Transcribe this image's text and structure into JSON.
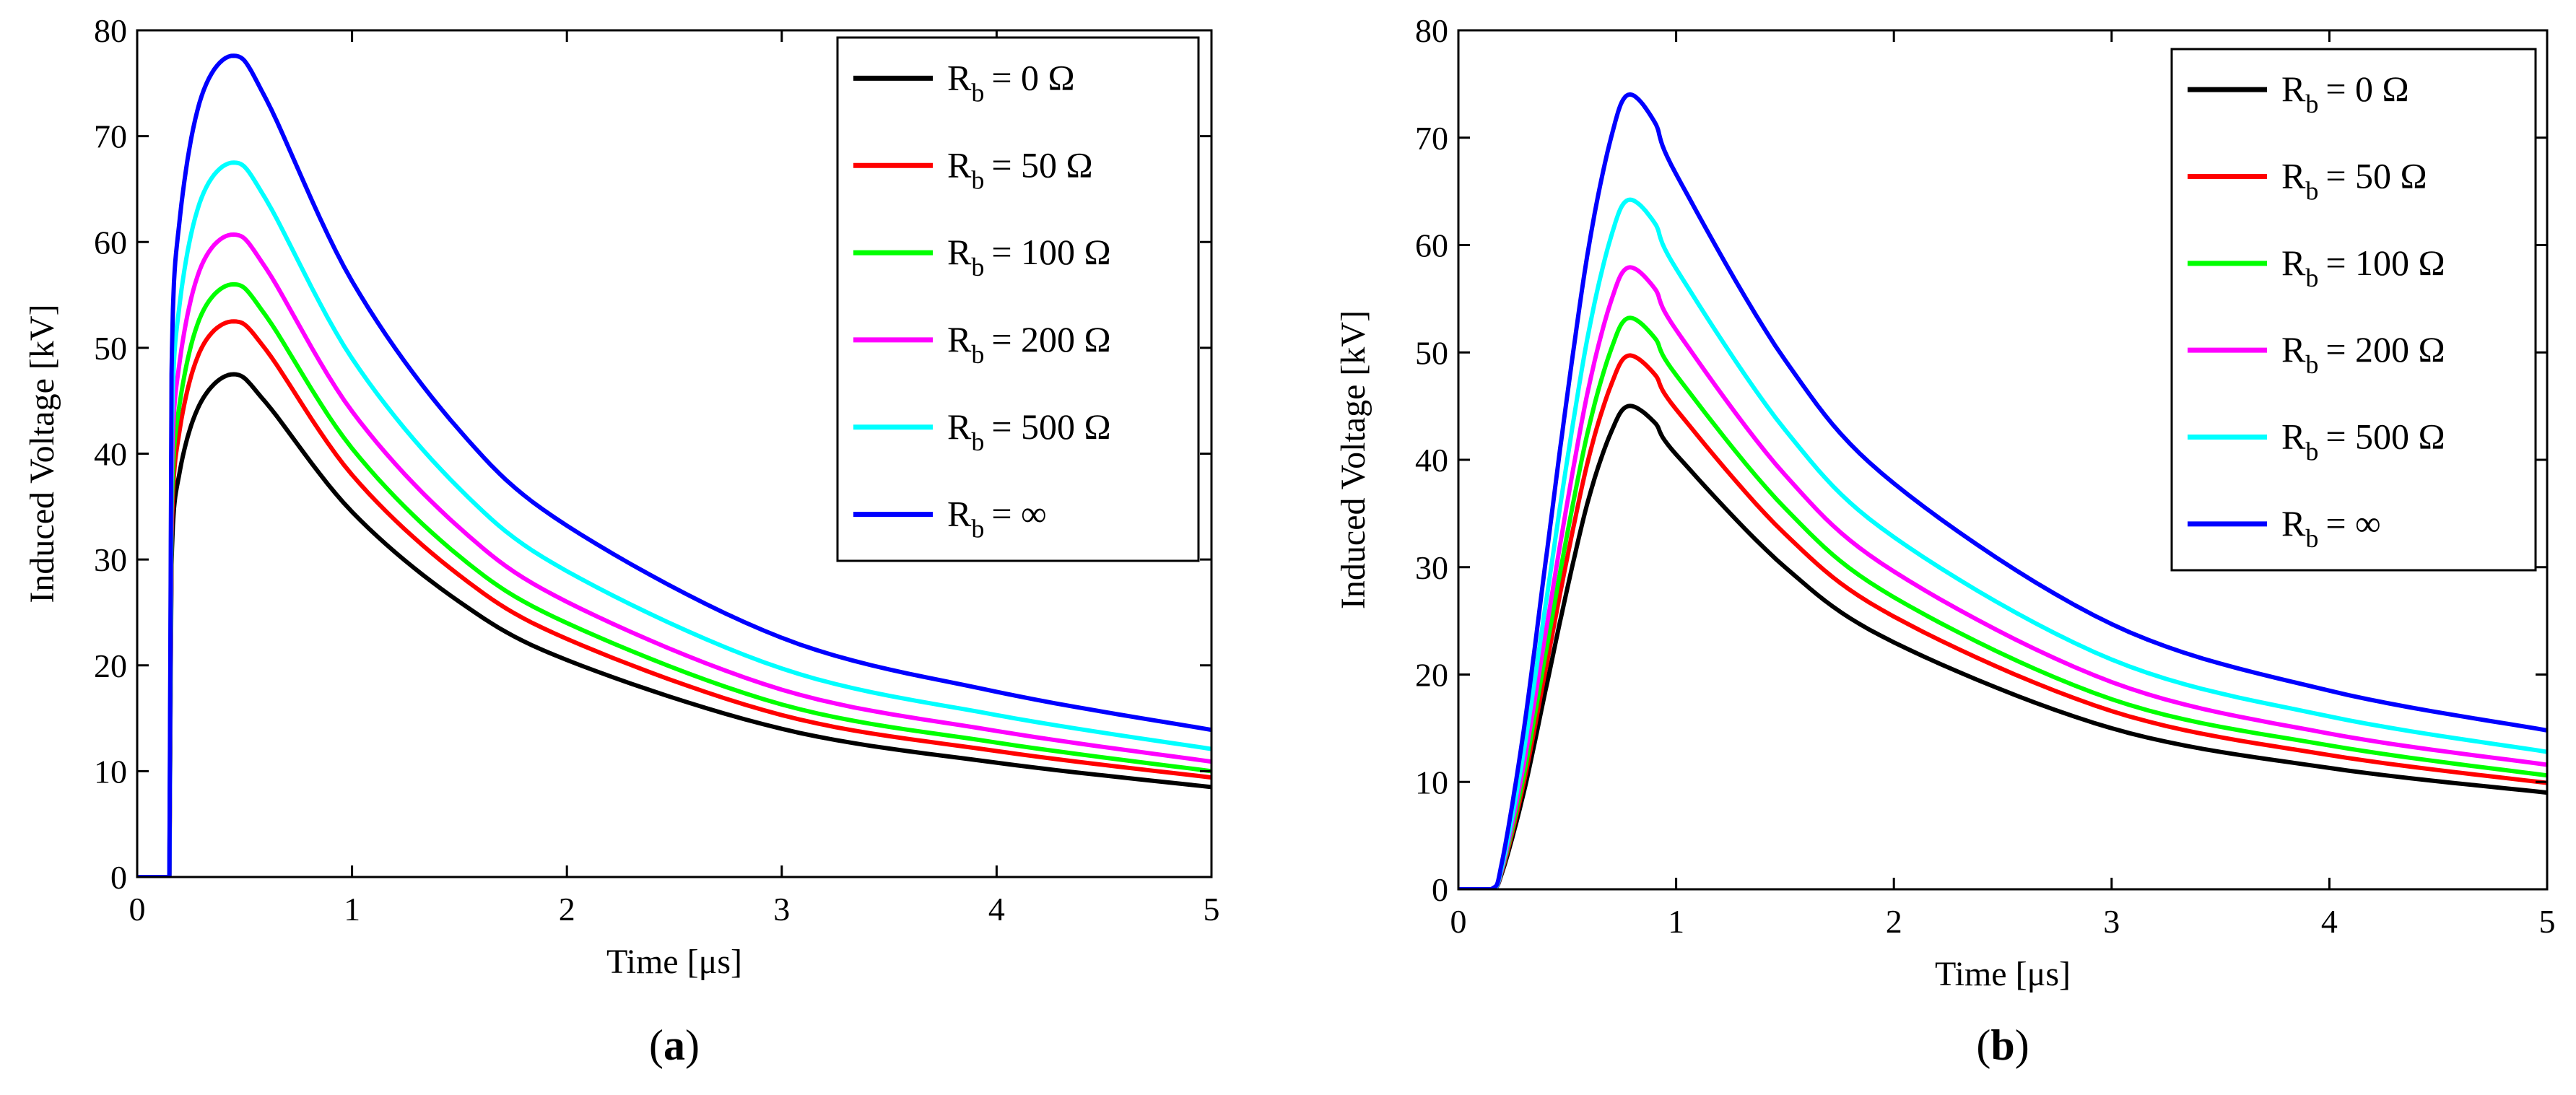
{
  "chart_data": [
    {
      "type": "line",
      "panel_label": "a",
      "xlabel": "Time [μs]",
      "ylabel": "Induced Voltage [kV]",
      "xlim": [
        0,
        5
      ],
      "ylim": [
        0,
        80
      ],
      "xticks": [
        0,
        1,
        2,
        3,
        4,
        5
      ],
      "yticks": [
        0,
        10,
        20,
        30,
        40,
        50,
        60,
        70,
        80
      ],
      "legend_position": "top-right",
      "onset": 0.15,
      "series": [
        {
          "name": "R",
          "sub": "b",
          "value_text": "= 0 Ω",
          "color": "#000000",
          "x": [
            0,
            0.15,
            0.16,
            0.2,
            0.3,
            0.45,
            0.6,
            1.0,
            1.5,
            2.0,
            3.0,
            4.0,
            5.0
          ],
          "y": [
            0,
            0,
            29.5,
            38.5,
            45.0,
            47.5,
            44.8,
            34.5,
            26.0,
            20.5,
            14.0,
            10.8,
            8.5
          ]
        },
        {
          "name": "R",
          "sub": "b",
          "value_text": "= 50 Ω",
          "color": "#ff0000",
          "x": [
            0,
            0.15,
            0.16,
            0.2,
            0.3,
            0.45,
            0.6,
            1.0,
            1.5,
            2.0,
            3.0,
            4.0,
            5.0
          ],
          "y": [
            0,
            0,
            32.0,
            42.5,
            50.0,
            52.5,
            49.8,
            38.0,
            28.5,
            22.5,
            15.3,
            11.9,
            9.4
          ]
        },
        {
          "name": "R",
          "sub": "b",
          "value_text": "= 100 Ω",
          "color": "#00ff00",
          "x": [
            0,
            0.15,
            0.16,
            0.2,
            0.3,
            0.45,
            0.6,
            1.0,
            1.5,
            2.0,
            3.0,
            4.0,
            5.0
          ],
          "y": [
            0,
            0,
            34.0,
            45.0,
            53.2,
            56.0,
            53.0,
            40.5,
            30.3,
            24.0,
            16.3,
            12.7,
            10.0
          ]
        },
        {
          "name": "R",
          "sub": "b",
          "value_text": "= 200 Ω",
          "color": "#ff00ff",
          "x": [
            0,
            0.15,
            0.16,
            0.2,
            0.3,
            0.45,
            0.6,
            1.0,
            1.5,
            2.0,
            3.0,
            4.0,
            5.0
          ],
          "y": [
            0,
            0,
            37.0,
            49.0,
            57.8,
            60.7,
            57.5,
            44.0,
            33.0,
            26.0,
            17.7,
            13.8,
            10.9
          ]
        },
        {
          "name": "R",
          "sub": "b",
          "value_text": "= 500 Ω",
          "color": "#00ffff",
          "x": [
            0,
            0.15,
            0.16,
            0.2,
            0.3,
            0.45,
            0.6,
            1.0,
            1.5,
            2.0,
            3.0,
            4.0,
            5.0
          ],
          "y": [
            0,
            0,
            41.0,
            54.5,
            64.2,
            67.5,
            64.0,
            49.0,
            36.7,
            28.9,
            19.7,
            15.3,
            12.1
          ]
        },
        {
          "name": "R",
          "sub": "b",
          "value_text": "= ∞",
          "color": "#0000ff",
          "x": [
            0,
            0.15,
            0.16,
            0.2,
            0.3,
            0.45,
            0.6,
            1.0,
            1.5,
            2.0,
            3.0,
            4.0,
            5.0
          ],
          "y": [
            0,
            0,
            47.5,
            62.5,
            73.8,
            77.6,
            73.5,
            56.3,
            42.2,
            33.2,
            22.6,
            17.5,
            13.9
          ]
        }
      ]
    },
    {
      "type": "line",
      "panel_label": "b",
      "xlabel": "Time [μs]",
      "ylabel": "Induced Voltage [kV]",
      "xlim": [
        0,
        5
      ],
      "ylim": [
        0,
        80
      ],
      "xticks": [
        0,
        1,
        2,
        3,
        4,
        5
      ],
      "yticks": [
        0,
        10,
        20,
        30,
        40,
        50,
        60,
        70,
        80
      ],
      "legend_position": "top-right",
      "onset": 0.15,
      "series": [
        {
          "name": "R",
          "sub": "b",
          "value_text": "= 0 Ω",
          "color": "#000000",
          "x": [
            0,
            0.15,
            0.2,
            0.3,
            0.4,
            0.5,
            0.6,
            0.7,
            0.78,
            0.9,
            1.0,
            1.5,
            2.0,
            3.0,
            4.0,
            5.0
          ],
          "y": [
            0,
            0,
            1.5,
            9.0,
            18.5,
            28.0,
            36.5,
            42.5,
            45.0,
            43.5,
            40.5,
            30.0,
            23.0,
            15.0,
            11.3,
            9.0
          ]
        },
        {
          "name": "R",
          "sub": "b",
          "value_text": "= 50 Ω",
          "color": "#ff0000",
          "x": [
            0,
            0.15,
            0.2,
            0.3,
            0.4,
            0.5,
            0.6,
            0.7,
            0.78,
            0.9,
            1.0,
            1.5,
            2.0,
            3.0,
            4.0,
            5.0
          ],
          "y": [
            0,
            0,
            1.7,
            9.9,
            20.4,
            30.9,
            40.3,
            46.9,
            49.7,
            48.0,
            44.7,
            33.1,
            25.4,
            16.6,
            12.5,
            9.9
          ]
        },
        {
          "name": "R",
          "sub": "b",
          "value_text": "= 100 Ω",
          "color": "#00ff00",
          "x": [
            0,
            0.15,
            0.2,
            0.3,
            0.4,
            0.5,
            0.6,
            0.7,
            0.78,
            0.9,
            1.0,
            1.5,
            2.0,
            3.0,
            4.0,
            5.0
          ],
          "y": [
            0,
            0,
            1.8,
            10.6,
            21.9,
            33.1,
            43.1,
            50.2,
            53.2,
            51.4,
            47.9,
            35.5,
            27.2,
            17.7,
            13.4,
            10.6
          ]
        },
        {
          "name": "R",
          "sub": "b",
          "value_text": "= 200 Ω",
          "color": "#ff00ff",
          "x": [
            0,
            0.15,
            0.2,
            0.3,
            0.4,
            0.5,
            0.6,
            0.7,
            0.78,
            0.9,
            1.0,
            1.5,
            2.0,
            3.0,
            4.0,
            5.0
          ],
          "y": [
            0,
            0,
            1.9,
            11.6,
            23.8,
            36.0,
            46.9,
            54.7,
            57.9,
            56.0,
            52.1,
            38.6,
            29.6,
            19.3,
            14.5,
            11.6
          ]
        },
        {
          "name": "R",
          "sub": "b",
          "value_text": "= 500 Ω",
          "color": "#00ffff",
          "x": [
            0,
            0.15,
            0.2,
            0.3,
            0.4,
            0.5,
            0.6,
            0.7,
            0.78,
            0.9,
            1.0,
            1.5,
            2.0,
            3.0,
            4.0,
            5.0
          ],
          "y": [
            0,
            0,
            2.1,
            12.8,
            26.4,
            40.0,
            52.1,
            60.7,
            64.2,
            62.1,
            57.8,
            42.8,
            32.8,
            21.4,
            16.1,
            12.8
          ]
        },
        {
          "name": "R",
          "sub": "b",
          "value_text": "= ∞",
          "color": "#0000ff",
          "x": [
            0,
            0.15,
            0.2,
            0.3,
            0.4,
            0.5,
            0.6,
            0.7,
            0.78,
            0.9,
            1.0,
            1.5,
            2.0,
            3.0,
            4.0,
            5.0
          ],
          "y": [
            0,
            0,
            2.5,
            14.8,
            30.4,
            46.0,
            60.0,
            69.9,
            74.0,
            71.5,
            66.6,
            49.3,
            37.8,
            24.7,
            18.5,
            14.8
          ]
        }
      ]
    }
  ]
}
